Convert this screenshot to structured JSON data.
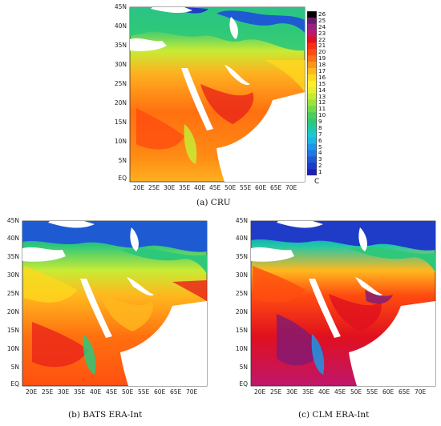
{
  "figure": {
    "lat_ticks": [
      "45N",
      "40N",
      "35N",
      "30N",
      "25N",
      "20N",
      "15N",
      "10N",
      "5N",
      "EQ"
    ],
    "lon_ticks": [
      "20E",
      "25E",
      "30E",
      "35E",
      "40E",
      "45E",
      "50E",
      "55E",
      "60E",
      "65E",
      "70E"
    ],
    "panels": [
      {
        "id": "a",
        "caption": "(a) CRU"
      },
      {
        "id": "b",
        "caption": "(b) BATS ERA-Int"
      },
      {
        "id": "c",
        "caption": "(c) CLM ERA-Int"
      }
    ],
    "colorbar": {
      "levels": [
        "26",
        "25",
        "24",
        "23",
        "22",
        "21",
        "20",
        "19",
        "18",
        "17",
        "16",
        "15",
        "14",
        "13",
        "12",
        "11",
        "10",
        "9",
        "8",
        "7",
        "6",
        "5",
        "4",
        "3",
        "2",
        "1"
      ],
      "colors": [
        "#000000",
        "#6b1a6b",
        "#9a2080",
        "#c0166b",
        "#e0101e",
        "#ff2a10",
        "#ff4c10",
        "#ff6e12",
        "#ff9418",
        "#ffb81e",
        "#ffd81e",
        "#ffee28",
        "#e6f030",
        "#c3eb36",
        "#9be33c",
        "#73d84a",
        "#4ccd5a",
        "#2ec87a",
        "#20c8a8",
        "#1ec8d0",
        "#1eb4e6",
        "#1e96e6",
        "#1e78e6",
        "#1e5ad2",
        "#1e3cc8",
        "#1e1ebe"
      ],
      "unit": "C"
    },
    "map_colors": {
      "cold_mountain": "#1e3cc8",
      "cool": "#22c4c0",
      "mild": "#3cc86e",
      "warm": "#c8eb34",
      "hot": "#ffb020",
      "very_hot": "#ff7010",
      "extreme": "#e8201a",
      "land_mask": "#ffffff",
      "dark_high": "#7a1a7a"
    }
  }
}
